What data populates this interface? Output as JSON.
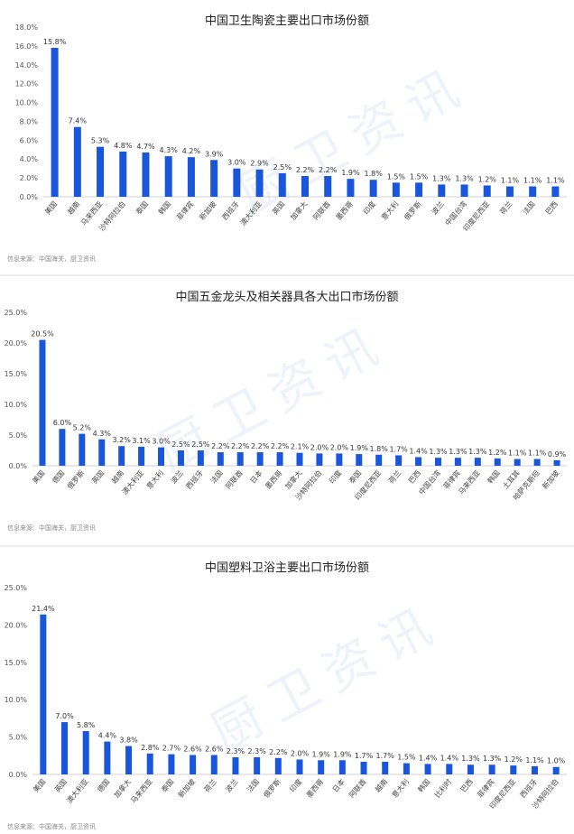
{
  "watermark": "厨卫资讯",
  "chart_data": [
    {
      "type": "bar",
      "title": "中国卫生陶瓷主要出口市场份额",
      "source": "信息来源：中国海关，厨卫资讯",
      "categories": [
        "美国",
        "越南",
        "马来西亚",
        "沙特阿拉伯",
        "泰国",
        "韩国",
        "菲律宾",
        "新加坡",
        "西班牙",
        "澳大利亚",
        "英国",
        "加拿大",
        "阿联酋",
        "墨西哥",
        "印度",
        "意大利",
        "俄罗斯",
        "波兰",
        "中国台湾",
        "印度尼西亚",
        "荷兰",
        "法国",
        "巴西"
      ],
      "values": [
        15.8,
        7.4,
        5.3,
        4.8,
        4.7,
        4.3,
        4.2,
        3.9,
        3.0,
        2.9,
        2.5,
        2.2,
        2.2,
        1.9,
        1.8,
        1.5,
        1.5,
        1.3,
        1.3,
        1.2,
        1.1,
        1.1,
        1.1
      ],
      "value_labels": [
        "15.8%",
        "7.4%",
        "5.3%",
        "4.8%",
        "4.7%",
        "4.3%",
        "4.2%",
        "3.9%",
        "3.0%",
        "2.9%",
        "2.5%",
        "2.2%",
        "2.2%",
        "1.9%",
        "1.8%",
        "1.5%",
        "1.5%",
        "1.3%",
        "1.3%",
        "1.2%",
        "1.1%",
        "1.1%",
        "1.1%"
      ],
      "yticks": [
        "0.0%",
        "2.0%",
        "4.0%",
        "6.0%",
        "8.0%",
        "10.0%",
        "12.0%",
        "14.0%",
        "16.0%",
        "18.0%"
      ],
      "ylim": [
        0,
        18
      ],
      "ystep": 2,
      "color": "#1a56db"
    },
    {
      "type": "bar",
      "title": "中国五金龙头及相关器具各大出口市场份额",
      "source": "信息来源：中国海关，厨卫资讯",
      "categories": [
        "美国",
        "德国",
        "俄罗斯",
        "英国",
        "越南",
        "澳大利亚",
        "意大利",
        "波兰",
        "西班牙",
        "法国",
        "阿联酋",
        "日本",
        "墨西哥",
        "加拿大",
        "沙特阿拉伯",
        "印度",
        "泰国",
        "印度尼西亚",
        "荷兰",
        "巴西",
        "中国台湾",
        "菲律宾",
        "马来西亚",
        "韩国",
        "土耳其",
        "哈萨克斯坦",
        "新加坡"
      ],
      "values": [
        20.5,
        6.0,
        5.2,
        4.3,
        3.2,
        3.1,
        3.0,
        2.5,
        2.5,
        2.2,
        2.2,
        2.2,
        2.2,
        2.1,
        2.0,
        2.0,
        1.9,
        1.8,
        1.7,
        1.4,
        1.3,
        1.3,
        1.3,
        1.2,
        1.1,
        1.1,
        0.9
      ],
      "value_labels": [
        "20.5%",
        "6.0%",
        "5.2%",
        "4.3%",
        "3.2%",
        "3.1%",
        "3.0%",
        "2.5%",
        "2.5%",
        "2.2%",
        "2.2%",
        "2.2%",
        "2.2%",
        "2.1%",
        "2.0%",
        "2.0%",
        "1.9%",
        "1.8%",
        "1.7%",
        "1.4%",
        "1.3%",
        "1.3%",
        "1.3%",
        "1.2%",
        "1.1%",
        "1.1%",
        "0.9%"
      ],
      "yticks": [
        "0.0%",
        "5.0%",
        "10.0%",
        "15.0%",
        "20.0%",
        "25.0%"
      ],
      "ylim": [
        0,
        25
      ],
      "ystep": 5,
      "color": "#1a56db"
    },
    {
      "type": "bar",
      "title": "中国塑料卫浴主要出口市场份额",
      "source": "信息来源：中国海关，厨卫资讯",
      "categories": [
        "美国",
        "英国",
        "澳大利亚",
        "德国",
        "加拿大",
        "马来西亚",
        "泰国",
        "新加坡",
        "荷兰",
        "波兰",
        "法国",
        "俄罗斯",
        "印度",
        "墨西哥",
        "日本",
        "阿联酋",
        "越南",
        "意大利",
        "韩国",
        "比利时",
        "巴西",
        "菲律宾",
        "印度尼西亚",
        "西班牙",
        "沙特阿拉伯"
      ],
      "values": [
        21.4,
        7.0,
        5.8,
        4.4,
        3.8,
        2.8,
        2.7,
        2.6,
        2.6,
        2.3,
        2.3,
        2.2,
        2.0,
        1.9,
        1.9,
        1.7,
        1.7,
        1.5,
        1.4,
        1.4,
        1.3,
        1.3,
        1.2,
        1.1,
        1.0
      ],
      "value_labels": [
        "21.4%",
        "7.0%",
        "5.8%",
        "4.4%",
        "3.8%",
        "2.8%",
        "2.7%",
        "2.6%",
        "2.6%",
        "2.3%",
        "2.3%",
        "2.2%",
        "2.0%",
        "1.9%",
        "1.9%",
        "1.7%",
        "1.7%",
        "1.5%",
        "1.4%",
        "1.4%",
        "1.3%",
        "1.3%",
        "1.2%",
        "1.1%",
        "1.0%"
      ],
      "yticks": [
        "0.0%",
        "5.0%",
        "10.0%",
        "15.0%",
        "20.0%",
        "25.0%"
      ],
      "ylim": [
        0,
        25
      ],
      "ystep": 5,
      "color": "#1a56db"
    }
  ]
}
